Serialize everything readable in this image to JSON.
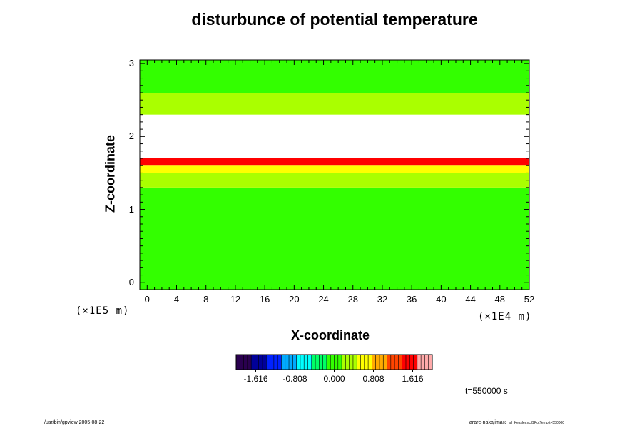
{
  "chart_data": {
    "type": "heatmap",
    "title": "disturbunce of potential temperature",
    "xlabel": "X-coordinate",
    "ylabel": "Z-coordinate",
    "x_scale_label": "(×1E4 m)",
    "y_scale_label": "(×1E5 m)",
    "xlim": [
      -1,
      52
    ],
    "ylim": [
      -0.1,
      3.05
    ],
    "x_ticks": [
      "0",
      "4",
      "8",
      "12",
      "16",
      "20",
      "24",
      "28",
      "32",
      "36",
      "40",
      "44",
      "48",
      "52"
    ],
    "y_ticks": [
      "0",
      "1",
      "2",
      "3"
    ],
    "colorbar": {
      "min": -2.02,
      "max": 2.02,
      "ticks": [
        "-1.616",
        "-0.808",
        "0.000",
        "0.808",
        "1.616"
      ],
      "colors": [
        "#2a004f",
        "#000099",
        "#0022ff",
        "#00aaff",
        "#00ffff",
        "#00ff66",
        "#33ff00",
        "#aaff00",
        "#ffff00",
        "#ffaa00",
        "#ff4400",
        "#ff0000",
        "#ffaaaa"
      ]
    },
    "bands": [
      {
        "z": [
          -0.1,
          1.3
        ],
        "value": 0.05
      },
      {
        "z": [
          1.3,
          1.5
        ],
        "value": 0.35
      },
      {
        "z": [
          1.5,
          1.6
        ],
        "value": 0.7
      },
      {
        "z": [
          1.6,
          1.7
        ],
        "value": 1.5
      },
      {
        "z": [
          1.7,
          2.3
        ],
        "value": "out of range (white) with banded contours"
      },
      {
        "z": [
          2.3,
          2.6
        ],
        "value": 0.3
      },
      {
        "z": [
          2.6,
          3.05
        ],
        "value": 0.1
      }
    ],
    "time_label": "t=550000 s"
  },
  "footer": {
    "left": "/usr/bin/gpview 2005-08-22",
    "right_main": "arare-nakajima",
    "right_sub": "03_all_Kessler.nc@PotTemp,t=550000"
  }
}
